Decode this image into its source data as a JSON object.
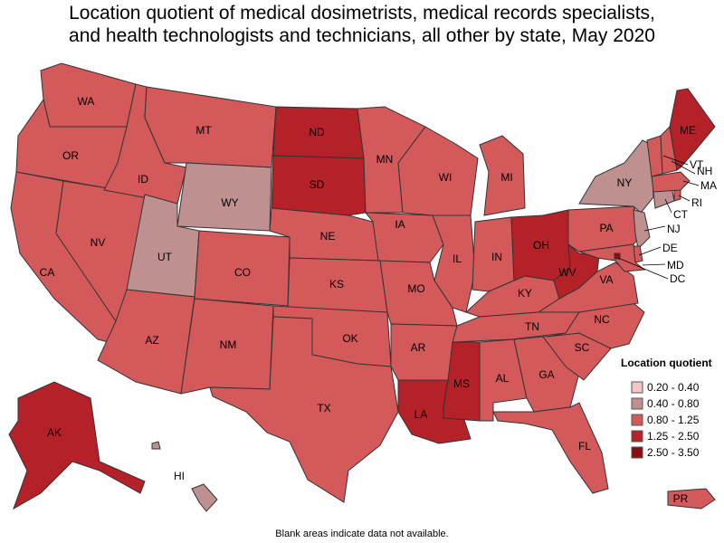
{
  "title_line1": "Location quotient of medical dosimetrists, medical records specialists,",
  "title_line2": "and health technologists and technicians, all other by state, May 2020",
  "footnote": "Blank areas indicate data not available.",
  "legend": {
    "title": "Location quotient",
    "items": [
      {
        "label": "0.20 - 0.40",
        "color": "#f4c6c6"
      },
      {
        "label": "0.40 - 0.80",
        "color": "#bf9090"
      },
      {
        "label": "0.80 - 1.25",
        "color": "#d4595b"
      },
      {
        "label": "1.25 - 2.50",
        "color": "#b52128"
      },
      {
        "label": "2.50 - 3.50",
        "color": "#8b0e14"
      }
    ]
  },
  "classes": {
    "c1": "#bf9090",
    "c2": "#d4595b",
    "c3": "#b52128",
    "c4": "#8b0e14"
  },
  "states": {
    "WA": "0.80 - 1.25",
    "OR": "0.80 - 1.25",
    "CA": "0.80 - 1.25",
    "NV": "0.80 - 1.25",
    "ID": "0.80 - 1.25",
    "MT": "0.80 - 1.25",
    "WY": "0.40 - 0.80",
    "UT": "0.40 - 0.80",
    "AZ": "0.80 - 1.25",
    "CO": "0.80 - 1.25",
    "NM": "0.80 - 1.25",
    "ND": "1.25 - 2.50",
    "SD": "1.25 - 2.50",
    "NE": "0.80 - 1.25",
    "KS": "0.80 - 1.25",
    "OK": "0.80 - 1.25",
    "TX": "0.80 - 1.25",
    "MN": "0.80 - 1.25",
    "IA": "0.80 - 1.25",
    "MO": "0.80 - 1.25",
    "AR": "0.80 - 1.25",
    "LA": "1.25 - 2.50",
    "WI": "0.80 - 1.25",
    "IL": "0.80 - 1.25",
    "MI": "0.80 - 1.25",
    "IN": "0.80 - 1.25",
    "OH": "1.25 - 2.50",
    "KY": "0.80 - 1.25",
    "TN": "0.80 - 1.25",
    "MS": "1.25 - 2.50",
    "AL": "0.80 - 1.25",
    "GA": "0.80 - 1.25",
    "FL": "0.80 - 1.25",
    "SC": "0.80 - 1.25",
    "NC": "0.80 - 1.25",
    "VA": "0.80 - 1.25",
    "WV": "1.25 - 2.50",
    "PA": "0.80 - 1.25",
    "NY": "0.40 - 0.80",
    "ME": "1.25 - 2.50",
    "VT": "0.80 - 1.25",
    "NH": "0.80 - 1.25",
    "MA": "0.80 - 1.25",
    "RI": "0.80 - 1.25",
    "CT": "0.40 - 0.80",
    "NJ": "0.40 - 0.80",
    "DE": "0.80 - 1.25",
    "MD": "0.80 - 1.25",
    "DC": "2.50 - 3.50",
    "AK": "1.25 - 2.50",
    "HI": "0.40 - 0.80",
    "PR": "0.80 - 1.25"
  }
}
